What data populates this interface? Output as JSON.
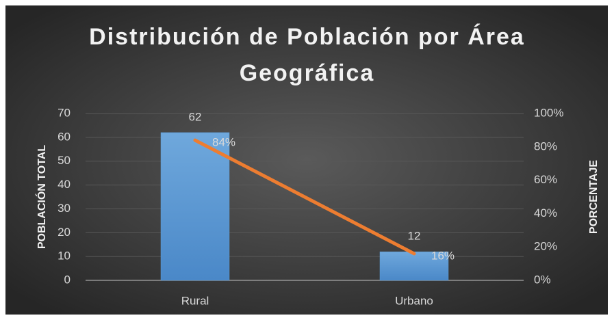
{
  "chart_data": {
    "type": "bar",
    "title": "Distribución de Población por Área Geográfica",
    "ylabel": "POBLACIÓN TOTAL",
    "y2label": "PORCENTAJE",
    "categories": [
      "Rural",
      "Urbano"
    ],
    "series": [
      {
        "type": "bar",
        "color": "#5b9bd5",
        "values": [
          62,
          12
        ]
      },
      {
        "type": "line",
        "color": "#ed7d31",
        "axis": "y2",
        "values": [
          84,
          16
        ],
        "value_labels": [
          "84%",
          "16%"
        ]
      }
    ],
    "ylim": [
      0,
      70
    ],
    "yticks": [
      0,
      10,
      20,
      30,
      40,
      50,
      60,
      70
    ],
    "y2lim": [
      0,
      100
    ],
    "y2ticks": [
      {
        "value": 0,
        "label": "0%"
      },
      {
        "value": 20,
        "label": "20%"
      },
      {
        "value": 40,
        "label": "40%"
      },
      {
        "value": 60,
        "label": "60%"
      },
      {
        "value": 80,
        "label": "80%"
      },
      {
        "value": 100,
        "label": "100%"
      }
    ],
    "grid": true
  }
}
